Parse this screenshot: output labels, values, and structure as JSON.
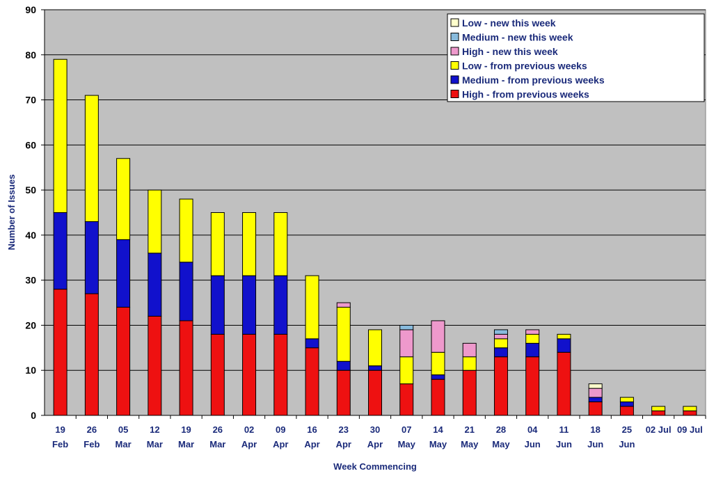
{
  "chart_data": {
    "type": "bar",
    "stacked": true,
    "xlabel": "Week Commencing",
    "ylabel": "Number of Issues",
    "ylim": [
      0,
      90
    ],
    "yticks": [
      0,
      10,
      20,
      30,
      40,
      50,
      60,
      70,
      80,
      90
    ],
    "grid": true,
    "legend_position": "top-right",
    "plot_background": "#c0c0c0",
    "categories": [
      [
        "19",
        "Feb"
      ],
      [
        "26",
        "Feb"
      ],
      [
        "05",
        "Mar"
      ],
      [
        "12",
        "Mar"
      ],
      [
        "19",
        "Mar"
      ],
      [
        "26",
        "Mar"
      ],
      [
        "02",
        "Apr"
      ],
      [
        "09",
        "Apr"
      ],
      [
        "16",
        "Apr"
      ],
      [
        "23",
        "Apr"
      ],
      [
        "30",
        "Apr"
      ],
      [
        "07",
        "May"
      ],
      [
        "14",
        "May"
      ],
      [
        "21",
        "May"
      ],
      [
        "28",
        "May"
      ],
      [
        "04",
        "Jun"
      ],
      [
        "11",
        "Jun"
      ],
      [
        "18",
        "Jun"
      ],
      [
        "25",
        "Jun"
      ],
      [
        "02 Jul"
      ],
      [
        "09 Jul"
      ]
    ],
    "series": [
      {
        "name": "High - from previous weeks",
        "color": "#ee1111",
        "values": [
          28,
          27,
          24,
          22,
          21,
          18,
          18,
          18,
          15,
          10,
          10,
          7,
          8,
          10,
          13,
          13,
          14,
          3,
          2,
          1,
          1
        ]
      },
      {
        "name": "Medium - from previous weeks",
        "color": "#1111cc",
        "values": [
          17,
          16,
          15,
          14,
          13,
          13,
          13,
          13,
          2,
          2,
          1,
          0,
          1,
          0,
          2,
          3,
          3,
          1,
          1,
          0,
          0
        ]
      },
      {
        "name": "Low - from previous weeks",
        "color": "#ffff00",
        "values": [
          34,
          28,
          18,
          14,
          14,
          14,
          14,
          14,
          14,
          12,
          8,
          6,
          5,
          3,
          2,
          2,
          1,
          0,
          1,
          1,
          1
        ]
      },
      {
        "name": "High - new this week",
        "color": "#ee99cc",
        "values": [
          0,
          0,
          0,
          0,
          0,
          0,
          0,
          0,
          0,
          1,
          0,
          6,
          7,
          3,
          1,
          1,
          0,
          2,
          0,
          0,
          0
        ]
      },
      {
        "name": "Medium - new this week",
        "color": "#88bbdd",
        "values": [
          0,
          0,
          0,
          0,
          0,
          0,
          0,
          0,
          0,
          0,
          0,
          1,
          0,
          0,
          1,
          0,
          0,
          0,
          0,
          0,
          0
        ]
      },
      {
        "name": "Low - new this week",
        "color": "#ffffcc",
        "values": [
          0,
          0,
          0,
          0,
          0,
          0,
          0,
          0,
          0,
          0,
          0,
          0,
          0,
          0,
          0,
          0,
          0,
          1,
          0,
          0,
          0
        ]
      }
    ],
    "legend_order": [
      5,
      4,
      3,
      2,
      1,
      0
    ]
  }
}
